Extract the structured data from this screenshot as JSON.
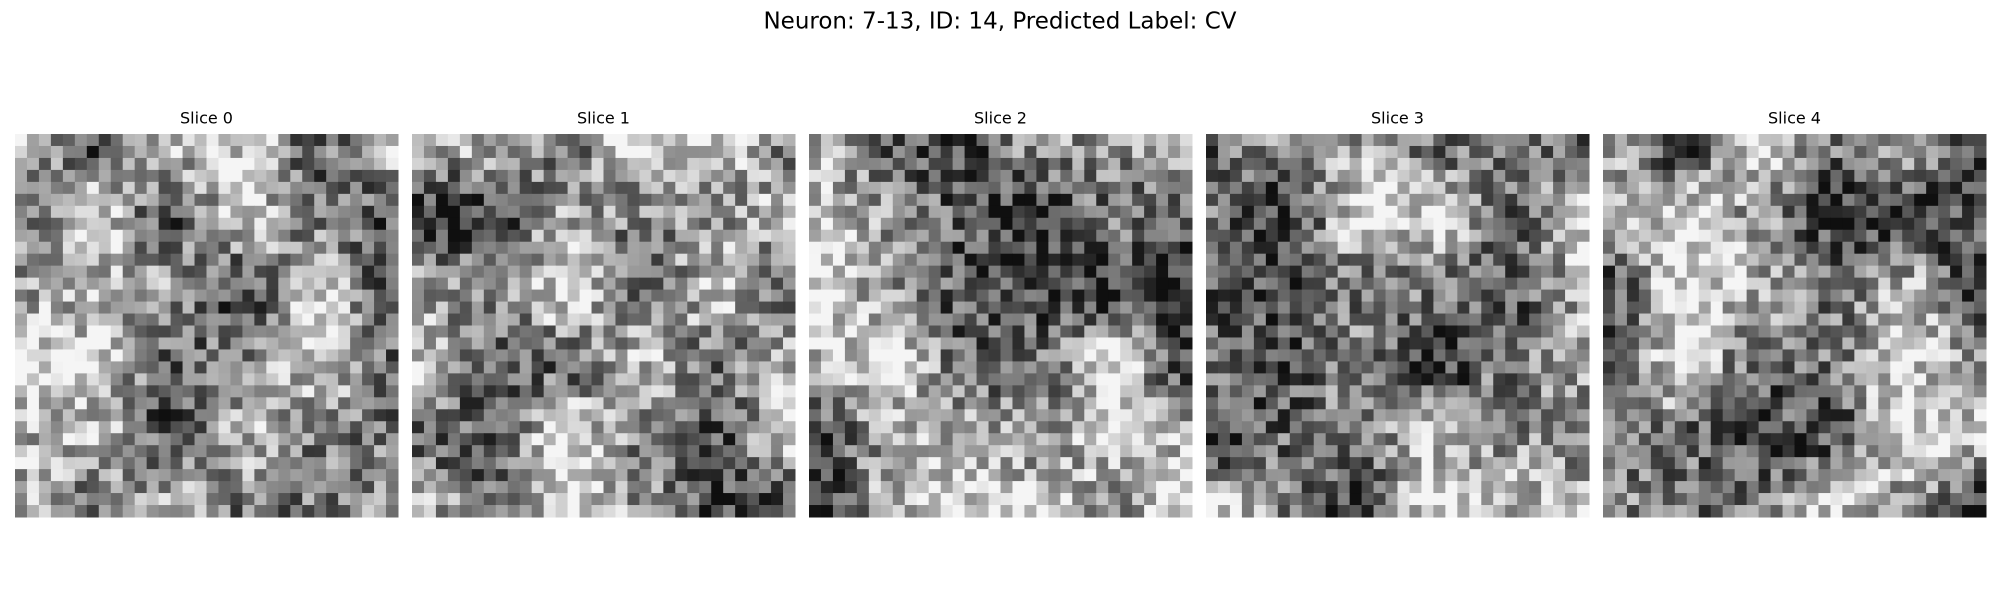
{
  "title": "Neuron: 7-13, ID: 14, Predicted Label: CV",
  "panels": [
    {
      "title": "Slice 0"
    },
    {
      "title": "Slice 1"
    },
    {
      "title": "Slice 2"
    },
    {
      "title": "Slice 3"
    },
    {
      "title": "Slice 4"
    }
  ]
}
